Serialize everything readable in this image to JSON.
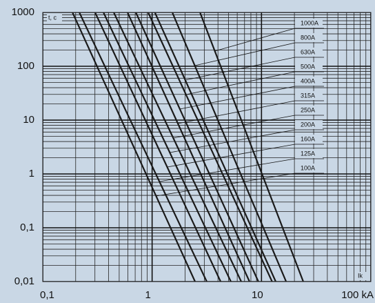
{
  "chart_data": {
    "type": "line",
    "y_label": "t, c",
    "x_label": "Ik",
    "log_x": true,
    "log_y": true,
    "grid": true,
    "xlim": [
      0.1,
      100
    ],
    "ylim": [
      0.01,
      1000
    ],
    "xticks": [
      {
        "value": 0.1,
        "label": "0,1"
      },
      1,
      10,
      {
        "value": 100,
        "label": "100 kA"
      }
    ],
    "yticks": [
      {
        "value": 0.01,
        "label": "0,01"
      },
      {
        "value": 0.1,
        "label": "0,1"
      },
      1,
      10,
      100,
      1000
    ],
    "series": [
      {
        "name": "100A",
        "color": "#1a1a1a",
        "x": [
          0.187,
          2.47
        ],
        "values": [
          1000,
          0.01
        ]
      },
      {
        "name": "125A",
        "color": "#1a1a1a",
        "x": [
          0.216,
          3.16
        ],
        "values": [
          1000,
          0.01
        ]
      },
      {
        "name": "160A",
        "color": "#1a1a1a",
        "x": [
          0.301,
          4.23
        ],
        "values": [
          1000,
          0.01
        ]
      },
      {
        "name": "200A",
        "color": "#1a1a1a",
        "x": [
          0.359,
          5.25
        ],
        "values": [
          1000,
          0.01
        ]
      },
      {
        "name": "250A",
        "color": "#1a1a1a",
        "x": [
          0.446,
          6.53
        ],
        "values": [
          1000,
          0.01
        ]
      },
      {
        "name": "315A",
        "color": "#1a1a1a",
        "x": [
          0.596,
          7.77
        ],
        "values": [
          1000,
          0.01
        ]
      },
      {
        "name": "400A",
        "color": "#1a1a1a",
        "x": [
          0.71,
          9.37
        ],
        "values": [
          1000,
          0.01
        ]
      },
      {
        "name": "500A",
        "color": "#1a1a1a",
        "x": [
          0.92,
          12.5
        ],
        "values": [
          1000,
          0.01
        ]
      },
      {
        "name": "630A",
        "color": "#1a1a1a",
        "x": [
          1.06,
          13.5
        ],
        "values": [
          1000,
          0.01
        ]
      },
      {
        "name": "800A",
        "color": "#1a1a1a",
        "x": [
          1.53,
          16.8
        ],
        "values": [
          1000,
          0.01
        ]
      },
      {
        "name": "1000A",
        "color": "#1a1a1a",
        "x": [
          2.74,
          24.1
        ],
        "values": [
          1000,
          0.01
        ]
      }
    ]
  }
}
